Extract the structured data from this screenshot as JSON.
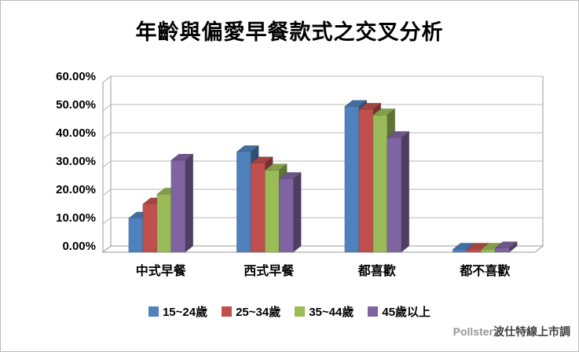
{
  "title": "年齡與偏愛早餐款式之交叉分析",
  "watermark": {
    "brand": "Pollster",
    "name": "波仕特線上市調"
  },
  "chart_data": {
    "type": "bar",
    "projection": "3d-clustered-column",
    "title": "年齡與偏愛早餐款式之交叉分析",
    "categories": [
      "中式早餐",
      "西式早餐",
      "都喜歡",
      "都不喜歡"
    ],
    "series": [
      {
        "name": "15~24歲",
        "color": "#4F81BD",
        "values": [
          12,
          35.5,
          51.5,
          1
        ]
      },
      {
        "name": "25~34歲",
        "color": "#C0504D",
        "values": [
          17,
          31.5,
          50.5,
          1
        ]
      },
      {
        "name": "35~44歲",
        "color": "#9BBB59",
        "values": [
          20.5,
          29,
          48.5,
          1
        ]
      },
      {
        "name": "45歲以上",
        "color": "#8064A2",
        "values": [
          32.5,
          26,
          40.5,
          1.5
        ]
      }
    ],
    "yticks": [
      {
        "label": "0.00%",
        "value": 0
      },
      {
        "label": "10.00%",
        "value": 10
      },
      {
        "label": "20.00%",
        "value": 20
      },
      {
        "label": "30.00%",
        "value": 30
      },
      {
        "label": "40.00%",
        "value": 40
      },
      {
        "label": "50.00%",
        "value": 50
      },
      {
        "label": "60.00%",
        "value": 60
      }
    ],
    "ylim": [
      0,
      60
    ],
    "grid": true,
    "legend_position": "bottom",
    "colors": {
      "grid": "#b7b7b7",
      "wall_edge": "#9a9a9a"
    }
  }
}
